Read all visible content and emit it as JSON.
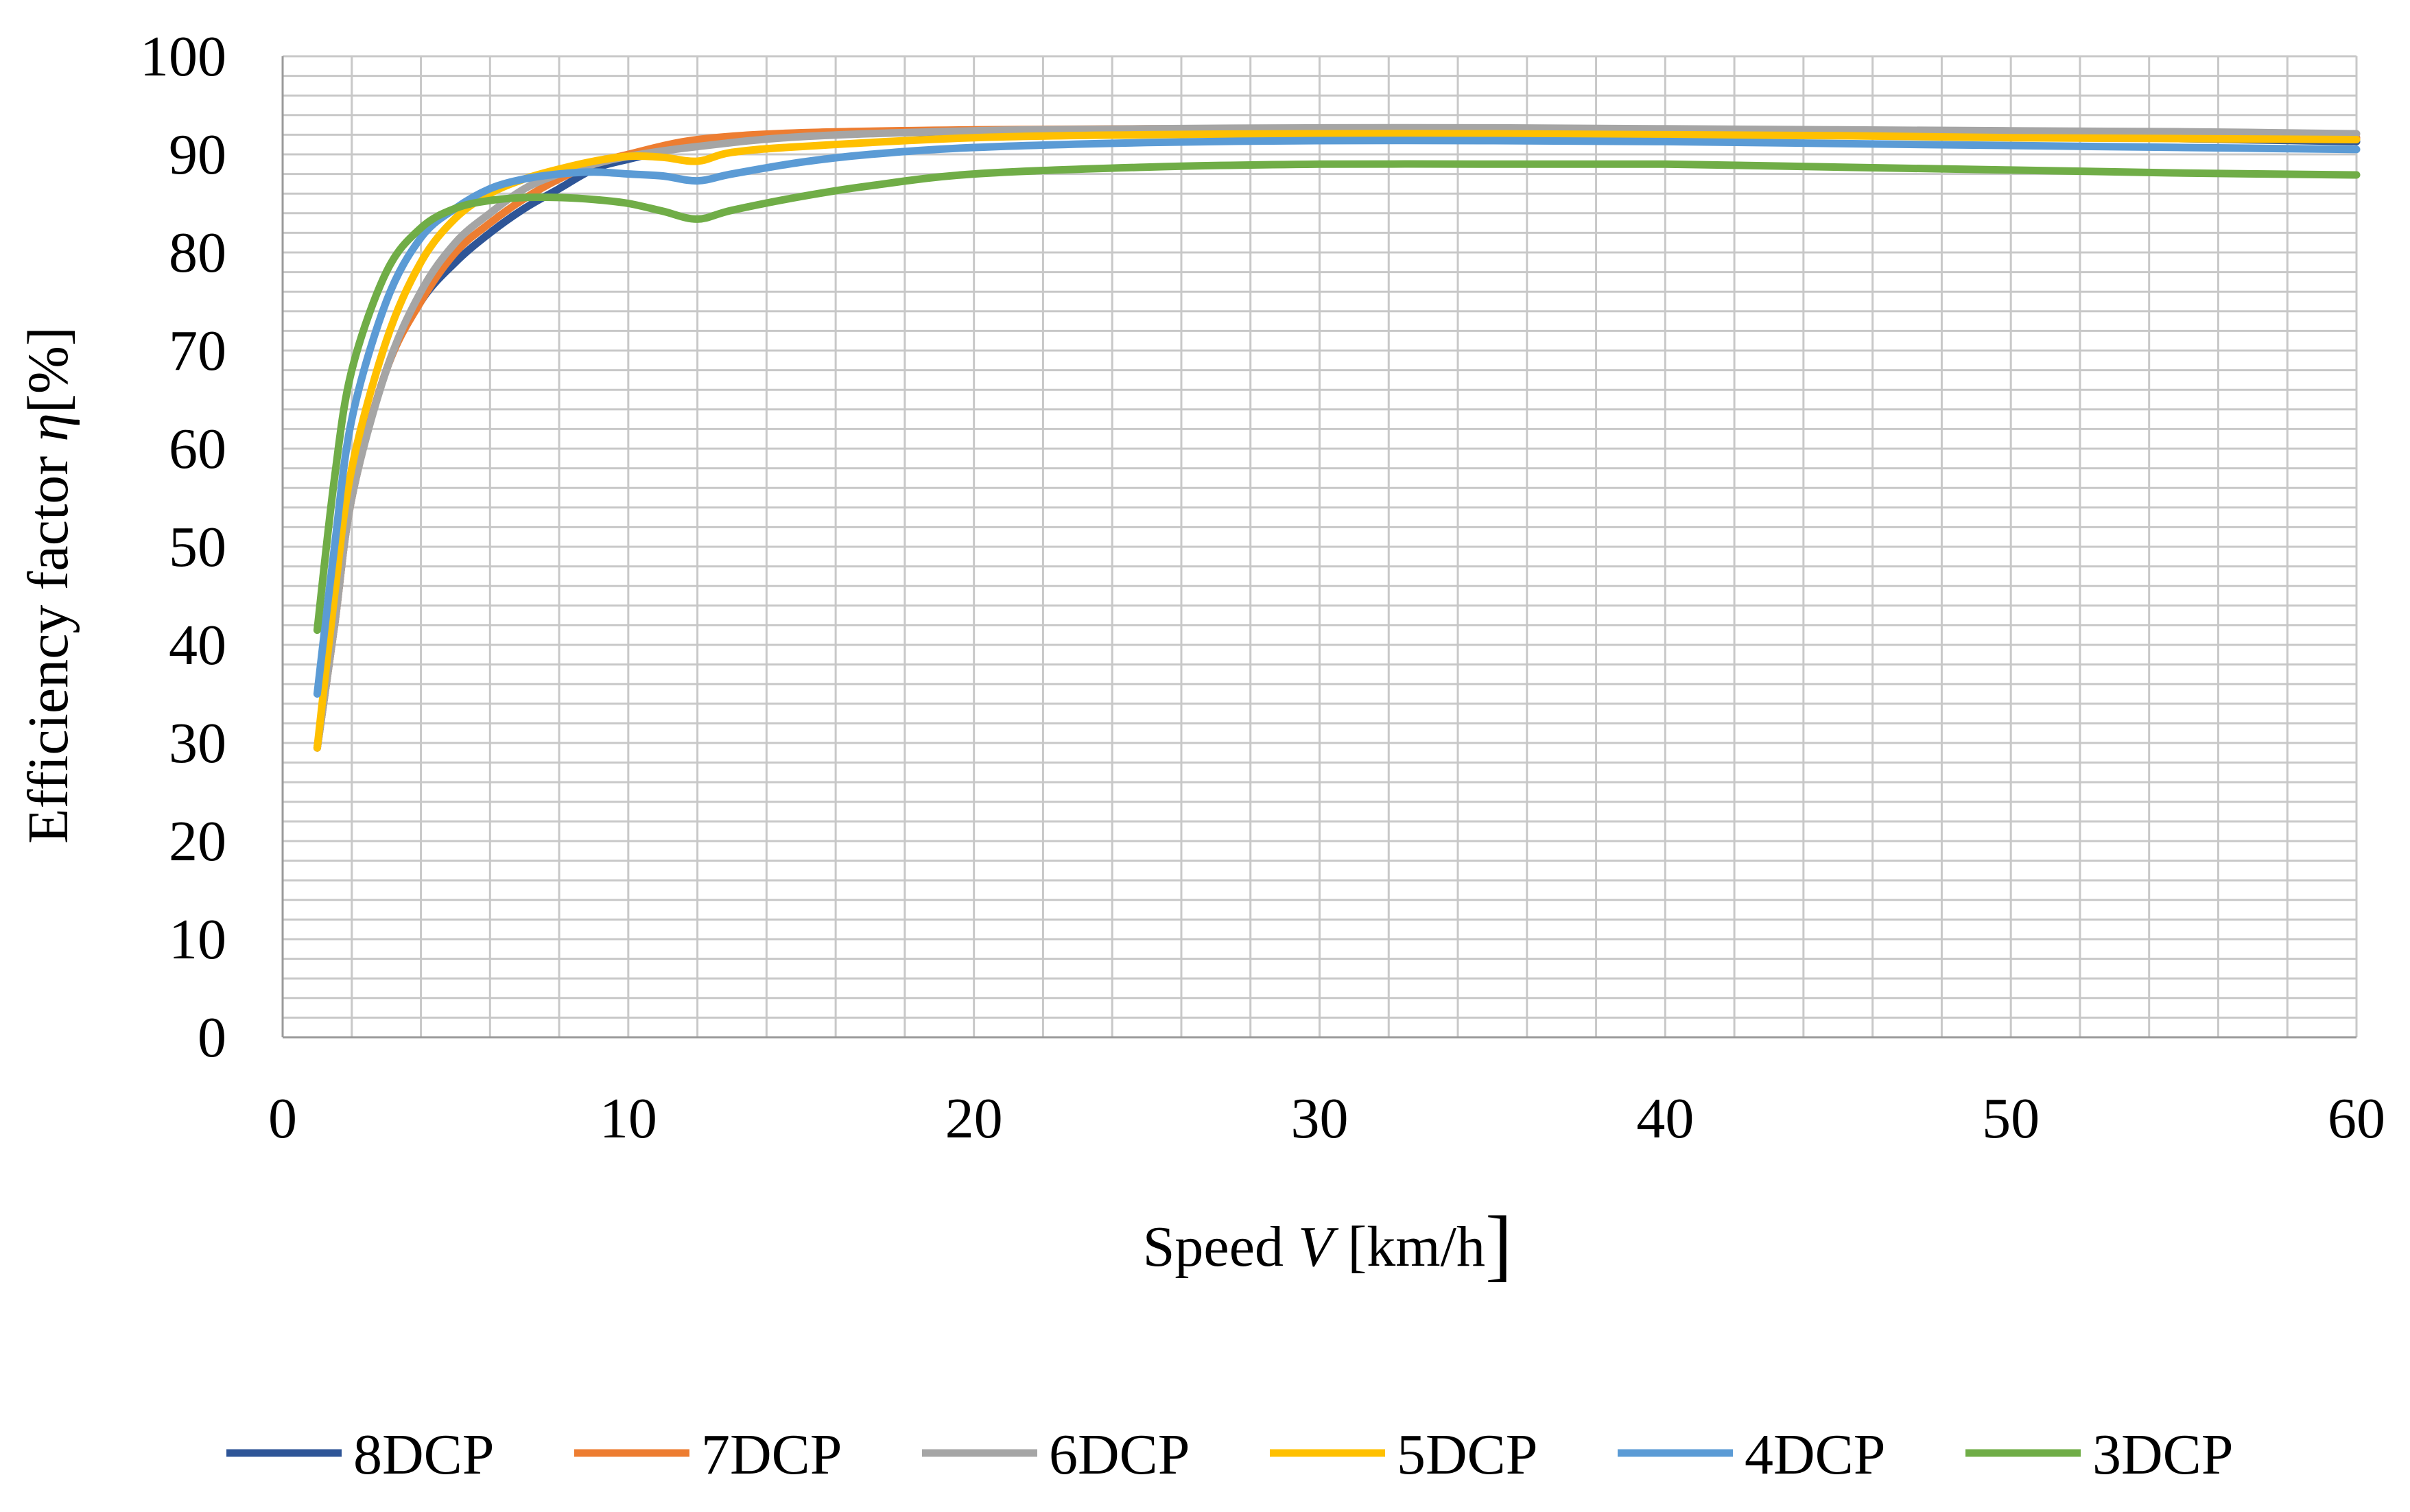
{
  "chart_data": {
    "type": "line",
    "title": "",
    "xlabel": "Speed",
    "xlabel_symbol": "V",
    "xlabel_unit_open": "[km/h",
    "xlabel_unit_close": "]",
    "ylabel": "Efficiency  factor ",
    "ylabel_symbol": "η",
    "ylabel_unit": "[%]",
    "xlim": [
      0,
      60
    ],
    "ylim": [
      0,
      100
    ],
    "x_ticks": [
      "0",
      "10",
      "20",
      "30",
      "40",
      "50",
      "60"
    ],
    "y_ticks": [
      "0",
      "10",
      "20",
      "30",
      "40",
      "50",
      "60",
      "70",
      "80",
      "90",
      "100"
    ],
    "grid": true,
    "legend_position": "bottom",
    "series": [
      {
        "name": "8DCP",
        "color": "#2E5597",
        "x": [
          1,
          1.5,
          2,
          3,
          4,
          5,
          6,
          7,
          8,
          9,
          10,
          12,
          15,
          20,
          25,
          30,
          35,
          40,
          45,
          50,
          55,
          60
        ],
        "y": [
          29.5,
          42,
          55,
          68,
          75,
          79,
          82,
          84.5,
          86.5,
          88.5,
          89.5,
          91,
          92,
          92.3,
          92.4,
          92.4,
          92.3,
          92.2,
          92.1,
          91.9,
          91.6,
          91.3
        ]
      },
      {
        "name": "7DCP",
        "color": "#ED7D31",
        "x": [
          1,
          1.5,
          2,
          3,
          4,
          5,
          6,
          7,
          8,
          9,
          10,
          12,
          15,
          20,
          25,
          30,
          35,
          40,
          45,
          50,
          55,
          60
        ],
        "y": [
          29.5,
          42,
          55,
          68,
          75,
          80,
          83,
          85.5,
          87.5,
          89,
          90,
          91.5,
          92.2,
          92.5,
          92.6,
          92.6,
          92.5,
          92.4,
          92.3,
          92.1,
          91.9,
          91.7
        ]
      },
      {
        "name": "6DCP",
        "color": "#A5A5A5",
        "x": [
          1,
          1.5,
          2,
          3,
          4,
          5,
          6,
          7,
          8,
          9,
          10,
          12,
          15,
          20,
          25,
          30,
          35,
          40,
          45,
          50,
          55,
          60
        ],
        "y": [
          29.5,
          42,
          55,
          68,
          76,
          81,
          84,
          86.5,
          88,
          89,
          89.8,
          90.8,
          91.8,
          92.4,
          92.6,
          92.7,
          92.7,
          92.6,
          92.5,
          92.4,
          92.3,
          92.1
        ]
      },
      {
        "name": "5DCP",
        "color": "#FFC000",
        "x": [
          1,
          1.5,
          2,
          3,
          4,
          5,
          6,
          7,
          8,
          9,
          10,
          11,
          12,
          13,
          15,
          20,
          25,
          30,
          35,
          40,
          45,
          50,
          55,
          60
        ],
        "y": [
          29.5,
          45,
          58,
          71,
          79,
          83.5,
          86,
          87.5,
          88.5,
          89.3,
          89.8,
          89.7,
          89.3,
          90.2,
          90.8,
          91.7,
          92,
          92.1,
          92.1,
          92,
          91.9,
          91.7,
          91.6,
          91.5
        ]
      },
      {
        "name": "4DCP",
        "color": "#5B9BD5",
        "x": [
          1,
          1.5,
          2,
          3,
          4,
          5,
          6,
          7,
          8,
          9,
          10,
          11,
          12,
          13,
          15,
          17,
          20,
          25,
          30,
          35,
          40,
          45,
          50,
          55,
          60
        ],
        "y": [
          35,
          50,
          63,
          75,
          81.5,
          84.5,
          86.5,
          87.5,
          88,
          88.2,
          88,
          87.8,
          87.3,
          88,
          89.2,
          90,
          90.7,
          91.2,
          91.4,
          91.4,
          91.3,
          91.1,
          90.9,
          90.7,
          90.5
        ]
      },
      {
        "name": "3DCP",
        "color": "#70AD47",
        "x": [
          1,
          1.5,
          2,
          3,
          4,
          5,
          6,
          7,
          8,
          9,
          10,
          11,
          12,
          13,
          15,
          17,
          20,
          25,
          30,
          35,
          40,
          45,
          50,
          55,
          60
        ],
        "y": [
          41.5,
          57,
          68,
          78,
          82.5,
          84.5,
          85.3,
          85.6,
          85.6,
          85.4,
          85,
          84.2,
          83.4,
          84.3,
          85.7,
          86.8,
          88,
          88.7,
          89,
          89,
          89,
          88.7,
          88.4,
          88.1,
          87.9
        ]
      }
    ]
  }
}
